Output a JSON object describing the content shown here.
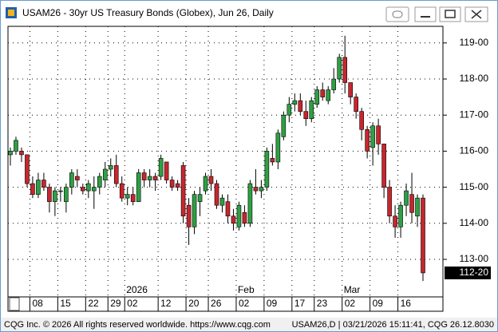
{
  "window": {
    "title": "USAM26 - 30yr US Treasury Bonds (Globex), Jun 26, Daily"
  },
  "footer": {
    "left": "CQG Inc. © 2026 All rights reserved worldwide. https://www.cqg.com",
    "right": "USAM26,D | 03/21/2026 15:11:41, CQG 26.12.8030"
  },
  "chart_data": {
    "type": "candlestick",
    "categories": [
      null,
      null,
      null,
      null,
      "08",
      null,
      null,
      null,
      null,
      "15",
      null,
      null,
      null,
      null,
      "22",
      null,
      null,
      null,
      "29",
      null,
      null,
      "02",
      null,
      null,
      null,
      null,
      null,
      "12",
      null,
      null,
      null,
      null,
      "20",
      null,
      null,
      null,
      "26",
      null,
      null,
      null,
      null,
      "02",
      null,
      null,
      null,
      null,
      "09",
      null,
      null,
      null,
      null,
      "17",
      null,
      null,
      null,
      "23",
      null,
      null,
      null,
      null,
      "02",
      null,
      null,
      null,
      null,
      "09",
      null,
      null,
      null,
      null,
      "16",
      null,
      null,
      null,
      null
    ],
    "month_labels": [
      null,
      null,
      null,
      null,
      null,
      null,
      null,
      null,
      null,
      null,
      null,
      null,
      null,
      null,
      null,
      null,
      null,
      null,
      null,
      null,
      null,
      "2026",
      null,
      null,
      null,
      null,
      null,
      null,
      null,
      null,
      null,
      null,
      null,
      null,
      null,
      null,
      null,
      null,
      null,
      null,
      null,
      "Feb",
      null,
      null,
      null,
      null,
      null,
      null,
      null,
      null,
      null,
      null,
      null,
      null,
      null,
      null,
      null,
      null,
      null,
      null,
      "Mar",
      null,
      null,
      null,
      null,
      null,
      null,
      null,
      null,
      null,
      null,
      null,
      null,
      null,
      null
    ],
    "open": [
      115.9,
      116.0,
      116.0,
      115.9,
      115.1,
      114.8,
      115.2,
      115.0,
      114.6,
      114.9,
      114.6,
      115.0,
      115.3,
      115.0,
      114.9,
      114.9,
      115.0,
      115.2,
      115.5,
      115.6,
      115.1,
      114.7,
      114.8,
      114.6,
      115.4,
      115.2,
      115.3,
      115.3,
      115.7,
      115.2,
      115.1,
      115.6,
      114.5,
      113.9,
      114.6,
      114.9,
      115.3,
      115.1,
      114.5,
      114.6,
      114.2,
      113.9,
      114.3,
      114.0,
      115.0,
      114.9,
      115.0,
      115.8,
      115.7,
      116.4,
      117.0,
      117.3,
      117.4,
      117.1,
      116.9,
      117.3,
      117.7,
      117.4,
      117.7,
      118.0,
      118.6,
      117.9,
      117.5,
      117.1,
      116.6,
      116.1,
      116.7,
      116.2,
      115.0,
      114.2,
      113.9,
      114.5,
      114.8,
      114.2,
      114.7
    ],
    "high": [
      116.1,
      116.4,
      116.1,
      115.9,
      115.3,
      115.4,
      115.4,
      115.1,
      115.0,
      115.0,
      115.1,
      115.5,
      115.5,
      115.1,
      115.2,
      115.3,
      115.4,
      115.7,
      115.8,
      115.9,
      115.3,
      115.0,
      115.0,
      115.5,
      115.5,
      115.5,
      115.4,
      115.9,
      115.7,
      115.3,
      115.2,
      115.7,
      114.7,
      114.9,
      115.0,
      115.4,
      115.5,
      115.2,
      114.8,
      114.8,
      114.4,
      114.6,
      114.5,
      115.2,
      115.5,
      115.2,
      116.1,
      116.2,
      116.6,
      117.1,
      117.5,
      117.6,
      117.6,
      117.4,
      117.5,
      117.8,
      117.9,
      117.8,
      118.3,
      118.7,
      119.2,
      117.9,
      117.6,
      117.2,
      116.7,
      116.8,
      116.9,
      116.2,
      115.2,
      114.5,
      114.6,
      115.1,
      115.4,
      114.8,
      114.8
    ],
    "low": [
      115.6,
      115.9,
      115.7,
      115.0,
      114.7,
      114.7,
      114.9,
      114.3,
      114.2,
      114.6,
      114.3,
      114.8,
      115.0,
      114.8,
      114.7,
      114.4,
      114.8,
      115.0,
      115.3,
      115.0,
      114.6,
      114.5,
      114.5,
      114.6,
      115.0,
      115.0,
      114.9,
      115.2,
      115.1,
      114.9,
      114.9,
      114.0,
      113.4,
      113.7,
      114.2,
      114.8,
      114.9,
      114.4,
      114.3,
      114.0,
      113.8,
      113.8,
      113.9,
      113.9,
      114.8,
      114.7,
      114.9,
      115.6,
      115.5,
      116.3,
      116.8,
      117.1,
      117.0,
      116.7,
      116.8,
      117.2,
      117.4,
      117.3,
      117.6,
      117.9,
      117.6,
      117.3,
      116.9,
      116.3,
      115.8,
      115.6,
      115.9,
      114.7,
      114.0,
      113.6,
      113.6,
      114.2,
      114.0,
      113.9,
      112.4
    ],
    "close": [
      116.0,
      116.3,
      115.9,
      115.1,
      114.8,
      115.2,
      115.0,
      114.6,
      114.9,
      114.9,
      115.0,
      115.4,
      115.2,
      114.9,
      115.1,
      115.0,
      115.3,
      115.5,
      115.6,
      115.1,
      114.7,
      114.8,
      114.6,
      115.4,
      115.2,
      115.3,
      115.2,
      115.8,
      115.2,
      115.0,
      115.0,
      114.2,
      113.9,
      114.8,
      114.8,
      115.3,
      115.1,
      114.5,
      114.7,
      114.2,
      114.0,
      114.5,
      114.0,
      115.1,
      114.9,
      115.0,
      116.0,
      115.7,
      116.5,
      117.0,
      117.3,
      117.4,
      117.1,
      116.9,
      117.4,
      117.7,
      117.5,
      117.7,
      118.0,
      118.6,
      117.9,
      117.5,
      117.1,
      116.6,
      116.0,
      116.7,
      116.2,
      115.0,
      114.2,
      113.9,
      114.5,
      114.9,
      114.3,
      114.7,
      112.625
    ],
    "up_color": "#2ea043",
    "down_color": "#c8262d",
    "ylim": [
      111.96,
      119.46
    ],
    "yticks": [
      {
        "value": 113,
        "label": "113-00"
      },
      {
        "value": 114,
        "label": "114-00"
      },
      {
        "value": 115,
        "label": "115-00"
      },
      {
        "value": 116,
        "label": "116-00"
      },
      {
        "value": 117,
        "label": "117-00"
      },
      {
        "value": 118,
        "label": "118-00"
      },
      {
        "value": 119,
        "label": "119-00"
      }
    ],
    "last_price": {
      "value": 112.625,
      "label": "112-20"
    },
    "grid": true
  }
}
